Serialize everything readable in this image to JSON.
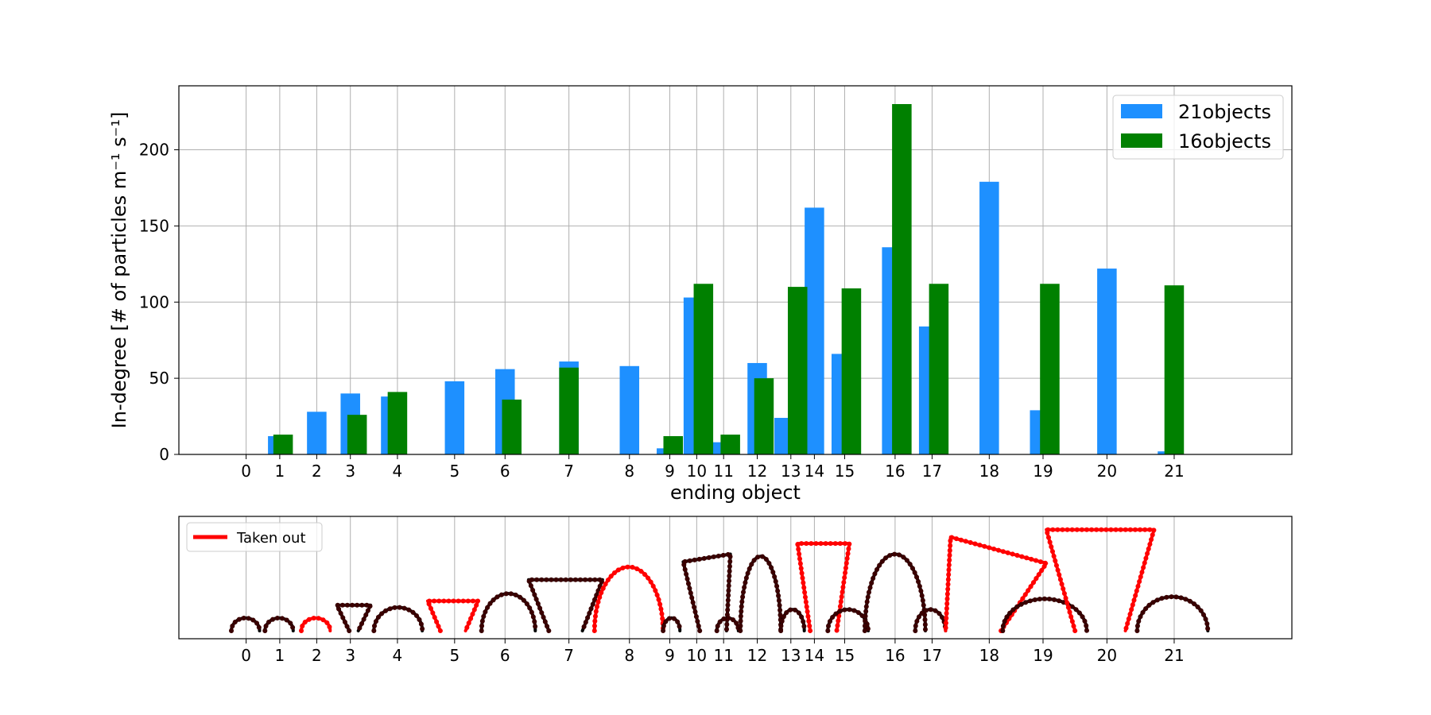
{
  "colors": {
    "series_21": "#1e90ff",
    "series_16": "#008000",
    "grid": "#b0b0b0",
    "taken_out": "#ff0000",
    "kept": "#000000"
  },
  "chart_data": [
    {
      "type": "bar",
      "ylabel": "In-degree [# of particles m⁻¹ s⁻¹]",
      "xlabel": "ending object",
      "ylim": [
        0,
        242
      ],
      "yticks": [
        0,
        50,
        100,
        150,
        200
      ],
      "grid": true,
      "legend_position": "top-right",
      "x_ticks": [
        {
          "label": "0",
          "x": 0.0
        },
        {
          "label": "1",
          "x": 0.5
        },
        {
          "label": "2",
          "x": 1.05
        },
        {
          "label": "3",
          "x": 1.55
        },
        {
          "label": "4",
          "x": 2.25
        },
        {
          "label": "5",
          "x": 3.1
        },
        {
          "label": "6",
          "x": 3.85
        },
        {
          "label": "7",
          "x": 4.8
        },
        {
          "label": "8",
          "x": 5.7
        },
        {
          "label": "9",
          "x": 6.3
        },
        {
          "label": "10",
          "x": 6.7
        },
        {
          "label": "11",
          "x": 7.1
        },
        {
          "label": "12",
          "x": 7.6
        },
        {
          "label": "13",
          "x": 8.1
        },
        {
          "label": "14",
          "x": 8.45
        },
        {
          "label": "15",
          "x": 8.9
        },
        {
          "label": "16",
          "x": 9.65
        },
        {
          "label": "17",
          "x": 10.2
        },
        {
          "label": "18",
          "x": 11.05
        },
        {
          "label": "19",
          "x": 11.85
        },
        {
          "label": "20",
          "x": 12.8
        },
        {
          "label": "21",
          "x": 13.8
        }
      ],
      "series": [
        {
          "name": "21objects",
          "bars": [
            {
              "x": 0.45,
              "w": 0.25,
              "value": 12
            },
            {
              "x": 1.05,
              "w": 0.29,
              "value": 28
            },
            {
              "x": 1.55,
              "w": 0.29,
              "value": 40
            },
            {
              "x": 2.15,
              "w": 0.29,
              "value": 38
            },
            {
              "x": 3.1,
              "w": 0.29,
              "value": 48
            },
            {
              "x": 3.85,
              "w": 0.29,
              "value": 56
            },
            {
              "x": 4.8,
              "w": 0.29,
              "value": 61
            },
            {
              "x": 5.7,
              "w": 0.29,
              "value": 58
            },
            {
              "x": 6.25,
              "w": 0.29,
              "value": 4
            },
            {
              "x": 6.65,
              "w": 0.29,
              "value": 103
            },
            {
              "x": 7.05,
              "w": 0.29,
              "value": 8
            },
            {
              "x": 7.6,
              "w": 0.29,
              "value": 60
            },
            {
              "x": 8.0,
              "w": 0.29,
              "value": 24
            },
            {
              "x": 8.45,
              "w": 0.29,
              "value": 162
            },
            {
              "x": 8.85,
              "w": 0.29,
              "value": 66
            },
            {
              "x": 9.6,
              "w": 0.29,
              "value": 136
            },
            {
              "x": 10.15,
              "w": 0.29,
              "value": 84
            },
            {
              "x": 11.05,
              "w": 0.29,
              "value": 179
            },
            {
              "x": 11.8,
              "w": 0.29,
              "value": 29
            },
            {
              "x": 12.8,
              "w": 0.29,
              "value": 122
            },
            {
              "x": 13.7,
              "w": 0.29,
              "value": 2
            }
          ]
        },
        {
          "name": "16objects",
          "bars": [
            {
              "x": 0.55,
              "w": 0.29,
              "value": 13
            },
            {
              "x": 1.65,
              "w": 0.29,
              "value": 26
            },
            {
              "x": 2.25,
              "w": 0.29,
              "value": 41
            },
            {
              "x": 3.95,
              "w": 0.29,
              "value": 36
            },
            {
              "x": 4.8,
              "w": 0.29,
              "value": 57
            },
            {
              "x": 6.35,
              "w": 0.29,
              "value": 12
            },
            {
              "x": 6.8,
              "w": 0.29,
              "value": 112
            },
            {
              "x": 7.2,
              "w": 0.29,
              "value": 13
            },
            {
              "x": 7.7,
              "w": 0.29,
              "value": 50
            },
            {
              "x": 8.2,
              "w": 0.29,
              "value": 110
            },
            {
              "x": 9.0,
              "w": 0.29,
              "value": 109
            },
            {
              "x": 9.75,
              "w": 0.29,
              "value": 230
            },
            {
              "x": 10.3,
              "w": 0.29,
              "value": 112
            },
            {
              "x": 11.95,
              "w": 0.29,
              "value": 112
            },
            {
              "x": 13.8,
              "w": 0.29,
              "value": 111
            }
          ]
        }
      ]
    },
    {
      "type": "line",
      "legend": "Taken out",
      "legend_position": "top-left",
      "grid": true,
      "x_ticks": [
        "0",
        "1",
        "2",
        "3",
        "4",
        "5",
        "6",
        "7",
        "8",
        "9",
        "10",
        "11",
        "12",
        "13",
        "14",
        "15",
        "16",
        "17",
        "18",
        "19",
        "20",
        "21"
      ],
      "shapes": [
        {
          "object": "0",
          "kind": "arc",
          "x0": -0.22,
          "x1": 0.2,
          "h": 0.12,
          "taken_out": false
        },
        {
          "object": "1",
          "kind": "arc",
          "x0": 0.28,
          "x1": 0.7,
          "h": 0.12,
          "taken_out": false
        },
        {
          "object": "2",
          "kind": "arc",
          "x0": 0.82,
          "x1": 1.25,
          "h": 0.12,
          "taken_out": true
        },
        {
          "object": "3",
          "kind": "trap",
          "x0": 1.35,
          "x1": 1.85,
          "top_w": 0.55,
          "bot_w": 0.15,
          "h": 0.24,
          "taken_out": false
        },
        {
          "object": "4",
          "kind": "arc",
          "x0": 1.9,
          "x1": 2.62,
          "h": 0.22,
          "taken_out": false
        },
        {
          "object": "5",
          "kind": "trap",
          "x0": 2.7,
          "x1": 3.45,
          "top_w": 0.8,
          "bot_w": 0.4,
          "h": 0.28,
          "taken_out": true
        },
        {
          "object": "6",
          "kind": "arc",
          "x0": 3.5,
          "x1": 4.3,
          "h": 0.35,
          "taken_out": false
        },
        {
          "object": "7",
          "kind": "trap",
          "x0": 4.2,
          "x1": 5.3,
          "top_w": 1.1,
          "bot_w": 0.5,
          "h": 0.48,
          "taken_out": false
        },
        {
          "object": "8",
          "kind": "arc",
          "x0": 5.18,
          "x1": 6.2,
          "h": 0.6,
          "taken_out": true
        },
        {
          "object": "9",
          "kind": "arc",
          "x0": 6.2,
          "x1": 6.45,
          "h": 0.12,
          "taken_out": false
        },
        {
          "object": "10",
          "kind": "flag",
          "x0": 6.5,
          "x1": 7.2,
          "h": 0.72,
          "taken_out": false
        },
        {
          "object": "11",
          "kind": "arc",
          "x0": 7.0,
          "x1": 7.32,
          "h": 0.12,
          "taken_out": false
        },
        {
          "object": "12",
          "kind": "arc",
          "x0": 7.35,
          "x1": 7.95,
          "h": 0.7,
          "taken_out": false
        },
        {
          "object": "13",
          "kind": "arc",
          "x0": 7.95,
          "x1": 8.3,
          "h": 0.2,
          "taken_out": false
        },
        {
          "object": "14",
          "kind": "trap",
          "x0": 8.2,
          "x1": 8.97,
          "top_w": 0.78,
          "bot_w": 0.4,
          "h": 0.82,
          "taken_out": true
        },
        {
          "object": "15",
          "kind": "arc",
          "x0": 8.65,
          "x1": 9.25,
          "h": 0.2,
          "taken_out": false
        },
        {
          "object": "16",
          "kind": "arc",
          "x0": 9.2,
          "x1": 10.1,
          "h": 0.72,
          "taken_out": false
        },
        {
          "object": "17",
          "kind": "arc",
          "x0": 9.95,
          "x1": 10.4,
          "h": 0.2,
          "taken_out": false
        },
        {
          "object": "18",
          "kind": "triangle",
          "x0": 10.4,
          "x1": 11.9,
          "h": 0.88,
          "taken_out": true
        },
        {
          "object": "19",
          "kind": "arc",
          "x0": 11.25,
          "x1": 12.5,
          "h": 0.3,
          "taken_out": false
        },
        {
          "object": "20",
          "kind": "trap",
          "x0": 11.9,
          "x1": 13.5,
          "top_w": 1.6,
          "bot_w": 0.75,
          "h": 0.95,
          "taken_out": true
        },
        {
          "object": "21",
          "kind": "arc",
          "x0": 13.25,
          "x1": 14.3,
          "h": 0.32,
          "taken_out": false
        }
      ]
    }
  ]
}
